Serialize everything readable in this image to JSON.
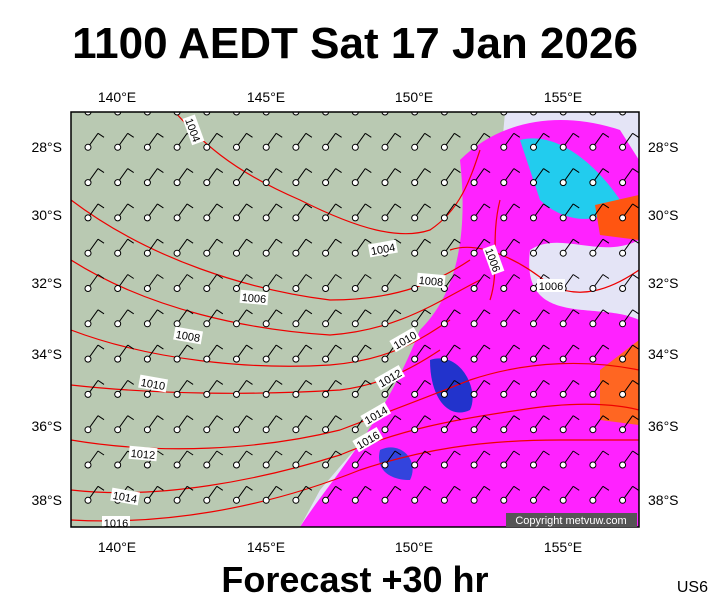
{
  "title": "1100 AEDT Sat 17 Jan 2026",
  "subtitle": "Forecast +30 hr",
  "code": "US6",
  "copyright": "Copyright metvuw.com",
  "longitude_labels": [
    "140°E",
    "145°E",
    "150°E",
    "155°E"
  ],
  "latitude_labels": [
    "28°S",
    "30°S",
    "32°S",
    "34°S",
    "36°S",
    "38°S"
  ],
  "isobar_labels": [
    "1004",
    "1004",
    "1006",
    "1006",
    "1006",
    "1008",
    "1008",
    "1010",
    "1010",
    "1012",
    "1012",
    "1014",
    "1014",
    "1016",
    "1016"
  ]
}
